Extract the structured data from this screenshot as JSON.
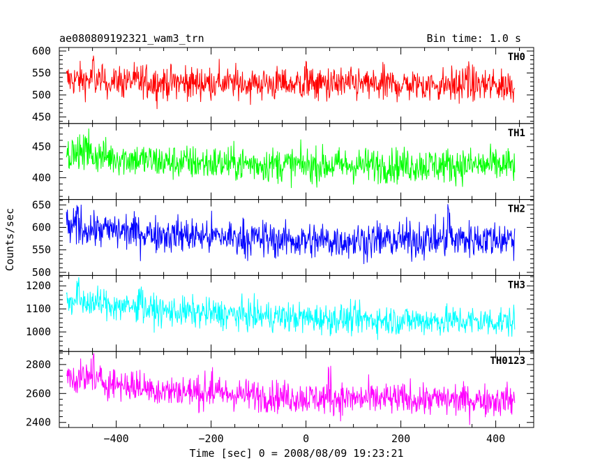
{
  "header": {
    "title": "ae080809192321_wam3_trn",
    "bin_time": "Bin time: 1.0 s"
  },
  "ylabel": "Counts/sec",
  "xlabel": "Time [sec] 0 = 2008/08/09 19:23:21",
  "chart_data": {
    "type": "line",
    "xlim": [
      -520,
      480
    ],
    "x_range": [
      -505,
      440
    ],
    "bin_time_s": 1.0,
    "xticks": [
      -400,
      -200,
      0,
      200,
      400
    ],
    "grid": false,
    "panels": [
      {
        "name": "TH0",
        "color": "#ff0000",
        "ylim": [
          435,
          608
        ],
        "yticks": [
          450,
          500,
          550,
          600
        ],
        "trend": [
          [
            -505,
            535
          ],
          [
            -300,
            528
          ],
          [
            0,
            525
          ],
          [
            200,
            523
          ],
          [
            440,
            522
          ]
        ],
        "noise_amplitude": 38,
        "spikes": [
          [
            0,
            570
          ],
          [
            -450,
            575
          ],
          [
            340,
            570
          ]
        ]
      },
      {
        "name": "TH1",
        "color": "#00ff00",
        "ylim": [
          365,
          487
        ],
        "yticks": [
          400,
          450
        ],
        "trend": [
          [
            -505,
            440
          ],
          [
            -300,
            425
          ],
          [
            0,
            420
          ],
          [
            200,
            420
          ],
          [
            440,
            420
          ]
        ],
        "noise_amplitude": 28,
        "spikes": [
          [
            -460,
            470
          ]
        ]
      },
      {
        "name": "TH2",
        "color": "#0000ff",
        "ylim": [
          493,
          662
        ],
        "yticks": [
          500,
          550,
          600,
          650
        ],
        "trend": [
          [
            -505,
            600
          ],
          [
            -300,
            585
          ],
          [
            0,
            570
          ],
          [
            200,
            572
          ],
          [
            440,
            575
          ]
        ],
        "noise_amplitude": 40,
        "spikes": [
          [
            -480,
            640
          ],
          [
            300,
            640
          ]
        ]
      },
      {
        "name": "TH3",
        "color": "#00ffff",
        "ylim": [
          915,
          1245
        ],
        "yticks": [
          1000,
          1100,
          1200
        ],
        "trend": [
          [
            -505,
            1140
          ],
          [
            -300,
            1090
          ],
          [
            0,
            1060
          ],
          [
            200,
            1050
          ],
          [
            440,
            1045
          ]
        ],
        "noise_amplitude": 65,
        "spikes": [
          [
            -480,
            1210
          ],
          [
            -350,
            1200
          ]
        ]
      },
      {
        "name": "TH0123",
        "color": "#ff00ff",
        "ylim": [
          2365,
          2890
        ],
        "yticks": [
          2400,
          2600,
          2800
        ],
        "trend": [
          [
            -505,
            2720
          ],
          [
            -300,
            2620
          ],
          [
            0,
            2570
          ],
          [
            200,
            2560
          ],
          [
            440,
            2555
          ]
        ],
        "noise_amplitude": 110,
        "spikes": [
          [
            -450,
            2850
          ],
          [
            -200,
            2760
          ],
          [
            50,
            2780
          ]
        ]
      }
    ]
  }
}
